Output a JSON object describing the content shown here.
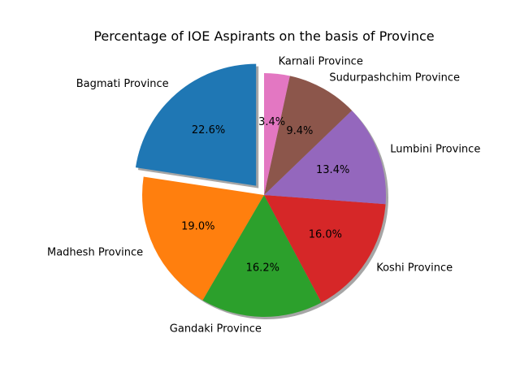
{
  "chart_data": {
    "type": "pie",
    "title": "Percentage of IOE Aspirants on the basis of Province",
    "start_angle_deg": 90,
    "direction": "counterclockwise",
    "shadow": true,
    "slices": [
      {
        "label": "Bagmati Province",
        "value": 22.6,
        "pct_label": "22.6%",
        "color": "#1f77b4",
        "explode": 0.1
      },
      {
        "label": "Madhesh Province",
        "value": 19.0,
        "pct_label": "19.0%",
        "color": "#ff7f0e",
        "explode": 0
      },
      {
        "label": "Gandaki Province",
        "value": 16.2,
        "pct_label": "16.2%",
        "color": "#2ca02c",
        "explode": 0
      },
      {
        "label": "Koshi Province",
        "value": 16.0,
        "pct_label": "16.0%",
        "color": "#d62728",
        "explode": 0
      },
      {
        "label": "Lumbini Province",
        "value": 13.4,
        "pct_label": "13.4%",
        "color": "#9467bd",
        "explode": 0
      },
      {
        "label": "Sudurpashchim Province",
        "value": 9.4,
        "pct_label": "9.4%",
        "color": "#8c564b",
        "explode": 0
      },
      {
        "label": "Karnali Province",
        "value": 3.4,
        "pct_label": "3.4%",
        "color": "#e377c2",
        "explode": 0
      }
    ]
  }
}
